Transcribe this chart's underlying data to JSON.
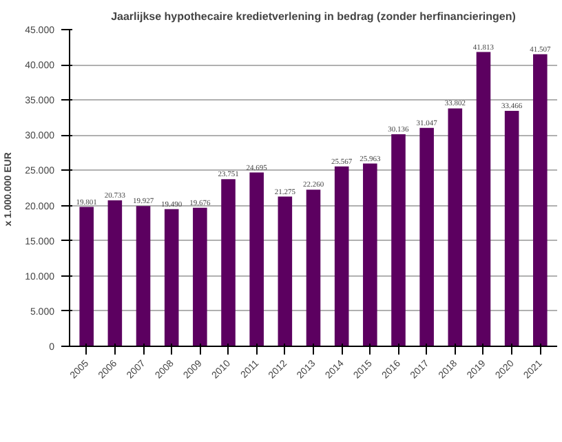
{
  "chart_data": {
    "type": "bar",
    "title": "Jaarlijkse hypothecaire kredietverlening in bedrag (zonder herfinancieringen)",
    "ylabel": "x 1.000.000  EUR",
    "categories": [
      "2005",
      "2006",
      "2007",
      "2008",
      "2009",
      "2010",
      "2011",
      "2012",
      "2013",
      "2014",
      "2015",
      "2016",
      "2017",
      "2018",
      "2019",
      "2020",
      "2021"
    ],
    "values": [
      19801,
      20733,
      19927,
      19490,
      19676,
      23751,
      24695,
      21275,
      22260,
      25567,
      25963,
      30136,
      31047,
      33802,
      41813,
      33466,
      41507
    ],
    "value_labels": [
      "19.801",
      "20.733",
      "19.927",
      "19.490",
      "19.676",
      "23.751",
      "24.695",
      "21.275",
      "22.260",
      "25.567",
      "25.963",
      "30.136",
      "31.047",
      "33.802",
      "41.813",
      "33.466",
      "41.507"
    ],
    "color": "#5c0060",
    "ylim": [
      0,
      45000
    ],
    "yticks": [
      {
        "value": 0,
        "label": "0"
      },
      {
        "value": 5000,
        "label": "5.000"
      },
      {
        "value": 10000,
        "label": "10.000"
      },
      {
        "value": 15000,
        "label": "15.000"
      },
      {
        "value": 20000,
        "label": "20.000"
      },
      {
        "value": 25000,
        "label": "25.000"
      },
      {
        "value": 30000,
        "label": "30.000"
      },
      {
        "value": 35000,
        "label": "35.000"
      },
      {
        "value": 40000,
        "label": "40.000"
      },
      {
        "value": 45000,
        "label": "45.000"
      }
    ],
    "grid": "y"
  }
}
